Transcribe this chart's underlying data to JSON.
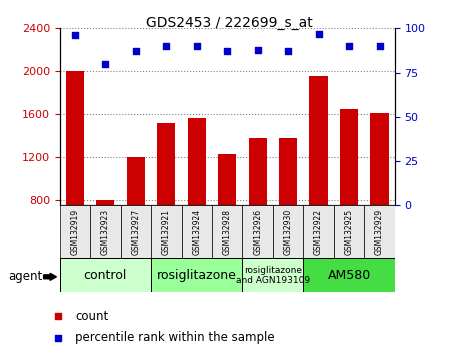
{
  "title": "GDS2453 / 222699_s_at",
  "samples": [
    "GSM132919",
    "GSM132923",
    "GSM132927",
    "GSM132921",
    "GSM132924",
    "GSM132928",
    "GSM132926",
    "GSM132930",
    "GSM132922",
    "GSM132925",
    "GSM132929"
  ],
  "counts": [
    2000,
    800,
    1200,
    1520,
    1560,
    1230,
    1380,
    1380,
    1960,
    1650,
    1610
  ],
  "percentiles": [
    96,
    80,
    87,
    90,
    90,
    87,
    88,
    87,
    97,
    90,
    90
  ],
  "ylim_left": [
    750,
    2400
  ],
  "ylim_right": [
    0,
    100
  ],
  "yticks_left": [
    800,
    1200,
    1600,
    2000,
    2400
  ],
  "yticks_right": [
    0,
    25,
    50,
    75,
    100
  ],
  "bar_color": "#cc0000",
  "dot_color": "#0000cc",
  "groups": [
    {
      "label": "control",
      "start": 0,
      "end": 2,
      "color": "#ccffcc",
      "text_size": 9
    },
    {
      "label": "rosiglitazone",
      "start": 3,
      "end": 5,
      "color": "#99ff99",
      "text_size": 9
    },
    {
      "label": "rosiglitazone\nand AGN193109",
      "start": 6,
      "end": 7,
      "color": "#ccffcc",
      "text_size": 6.5
    },
    {
      "label": "AM580",
      "start": 8,
      "end": 10,
      "color": "#44dd44",
      "text_size": 9
    }
  ],
  "tick_label_color_left": "#cc0000",
  "tick_label_color_right": "#0000cc",
  "legend_count_color": "#cc0000",
  "legend_dot_color": "#0000cc"
}
